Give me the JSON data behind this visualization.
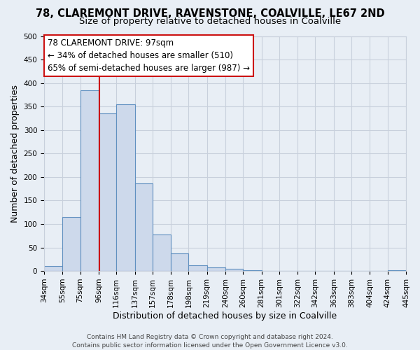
{
  "title": "78, CLAREMONT DRIVE, RAVENSTONE, COALVILLE, LE67 2ND",
  "subtitle": "Size of property relative to detached houses in Coalville",
  "xlabel": "Distribution of detached houses by size in Coalville",
  "ylabel": "Number of detached properties",
  "bin_edges": [
    34,
    55,
    75,
    96,
    116,
    137,
    157,
    178,
    198,
    219,
    240,
    260,
    281,
    301,
    322,
    342,
    363,
    383,
    404,
    424,
    445
  ],
  "bar_heights": [
    10,
    115,
    385,
    335,
    355,
    187,
    77,
    38,
    12,
    8,
    5,
    2,
    0,
    0,
    0,
    0,
    0,
    0,
    0,
    2
  ],
  "bar_facecolor": "#cdd9eb",
  "bar_edgecolor": "#6090c0",
  "grid_color": "#c8d0dc",
  "background_color": "#e8eef5",
  "vline_x": 97,
  "vline_color": "#cc1111",
  "annotation_title": "78 CLAREMONT DRIVE: 97sqm",
  "annotation_line1": "← 34% of detached houses are smaller (510)",
  "annotation_line2": "65% of semi-detached houses are larger (987) →",
  "annotation_box_facecolor": "#ffffff",
  "annotation_box_edgecolor": "#cc1111",
  "ylim": [
    0,
    500
  ],
  "xlim_min": 34,
  "xlim_max": 445,
  "tick_labels": [
    "34sqm",
    "55sqm",
    "75sqm",
    "96sqm",
    "116sqm",
    "137sqm",
    "157sqm",
    "178sqm",
    "198sqm",
    "219sqm",
    "240sqm",
    "260sqm",
    "281sqm",
    "301sqm",
    "322sqm",
    "342sqm",
    "363sqm",
    "383sqm",
    "404sqm",
    "424sqm",
    "445sqm"
  ],
  "footer_line1": "Contains HM Land Registry data © Crown copyright and database right 2024.",
  "footer_line2": "Contains public sector information licensed under the Open Government Licence v3.0.",
  "title_fontsize": 10.5,
  "subtitle_fontsize": 9.5,
  "axis_label_fontsize": 9,
  "tick_fontsize": 7.5,
  "footer_fontsize": 6.5,
  "annotation_fontsize": 8.5,
  "annotation_title_fontsize": 9
}
